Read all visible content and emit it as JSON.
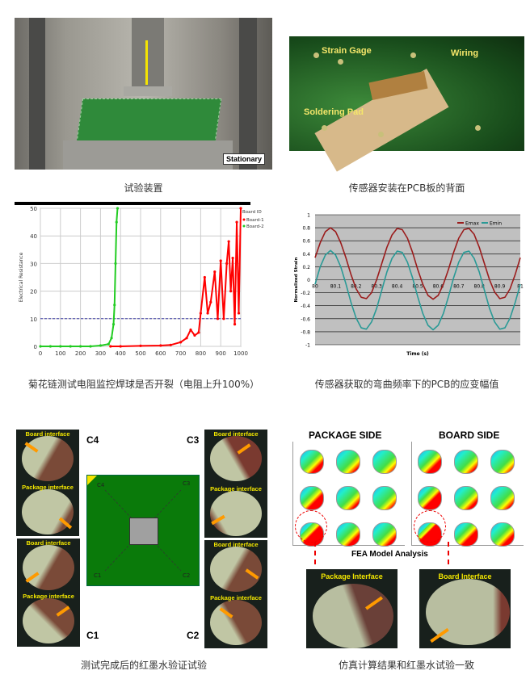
{
  "figures": [
    {
      "caption": "试验装置",
      "labels": {
        "stationary": "Stationary"
      }
    },
    {
      "caption": "传感器安装在PCB板的背面",
      "labels": {
        "strain_gage": "Strain Gage",
        "wiring": "Wiring",
        "soldering_pad": "Soldering Pad"
      }
    },
    {
      "caption": "菊花链测试电阻监控焊球是否开裂（电阻上升100%）"
    },
    {
      "caption": "传感器获取的弯曲频率下的PCB的应变幅值"
    },
    {
      "caption": "测试完成后的红墨水验证试验",
      "corners": [
        "C4",
        "C3",
        "C1",
        "C2"
      ],
      "board_corners": [
        "C4",
        "C3",
        "C1",
        "C2"
      ],
      "joint_labels": [
        "Board interface",
        "Package interface",
        "Board interface",
        "Package interface",
        "Board interface",
        "Package interface",
        "Board interface",
        "Package interface"
      ]
    },
    {
      "caption": "仿真计算结果和红墨水试验一致",
      "package_side": "PACKAGE SIDE",
      "board_side": "BOARD SIDE",
      "fea_label": "FEA Model Analysis",
      "package_interface": "Package Interface",
      "board_interface": "Board Interface"
    }
  ],
  "chart_data": [
    {
      "type": "scatter",
      "title": "",
      "xlabel": "",
      "ylabel": "Electrical Resistance",
      "xlim": [
        0,
        1000
      ],
      "ylim": [
        0,
        50
      ],
      "xticks": [
        0,
        100,
        200,
        300,
        400,
        500,
        600,
        700,
        800,
        900,
        1000
      ],
      "yticks": [
        0,
        10,
        20,
        30,
        40,
        50
      ],
      "grid": true,
      "threshold": 10,
      "legend": {
        "title": "Board ID",
        "placement": "right"
      },
      "series": [
        {
          "name": "Board-1",
          "color": "#ff0000",
          "points": [
            [
              350,
              0
            ],
            [
              400,
              0
            ],
            [
              500,
              0.2
            ],
            [
              600,
              0.3
            ],
            [
              650,
              0.5
            ],
            [
              700,
              1.5
            ],
            [
              730,
              3
            ],
            [
              750,
              6
            ],
            [
              770,
              4
            ],
            [
              790,
              5
            ],
            [
              800,
              12
            ],
            [
              820,
              25
            ],
            [
              835,
              12
            ],
            [
              850,
              16
            ],
            [
              870,
              27
            ],
            [
              885,
              10
            ],
            [
              900,
              31
            ],
            [
              915,
              10
            ],
            [
              930,
              30
            ],
            [
              940,
              38
            ],
            [
              950,
              20
            ],
            [
              960,
              32
            ],
            [
              970,
              8
            ],
            [
              980,
              45
            ],
            [
              990,
              12
            ],
            [
              1000,
              50
            ]
          ]
        },
        {
          "name": "Board-2",
          "color": "#22cc22",
          "points": [
            [
              0,
              0
            ],
            [
              50,
              0
            ],
            [
              100,
              0
            ],
            [
              150,
              0
            ],
            [
              200,
              0
            ],
            [
              250,
              0
            ],
            [
              300,
              0.3
            ],
            [
              340,
              0.8
            ],
            [
              355,
              3
            ],
            [
              365,
              8
            ],
            [
              370,
              15
            ],
            [
              375,
              30
            ],
            [
              380,
              45
            ],
            [
              385,
              50
            ]
          ]
        }
      ]
    },
    {
      "type": "line",
      "title": "",
      "xlabel": "Time (s)",
      "ylabel": "Normalized Strain",
      "xlim": [
        80,
        81
      ],
      "ylim": [
        -1,
        1
      ],
      "xticks": [
        "80",
        "80.1",
        "80.2",
        "80.3",
        "80.4",
        "80.5",
        "80.6",
        "80.7",
        "80.8",
        "80.9",
        "81"
      ],
      "yticks": [
        "1",
        "0.8",
        "0.6",
        "0.4",
        "0.2",
        "0",
        "-0.2",
        "-0.4",
        "-0.6",
        "-0.8",
        "-1"
      ],
      "grid": true,
      "legend": {
        "placement": "top-right"
      },
      "x_step": 0.025,
      "series": [
        {
          "name": "Emax",
          "color": "#9b1c1c",
          "values": [
            0.34,
            0.57,
            0.74,
            0.8,
            0.74,
            0.57,
            0.34,
            0.08,
            -0.14,
            -0.27,
            -0.29,
            -0.2,
            0.0,
            0.25,
            0.5,
            0.69,
            0.79,
            0.77,
            0.64,
            0.42,
            0.16,
            -0.07,
            -0.24,
            -0.3,
            -0.24,
            -0.07,
            0.16,
            0.42,
            0.64,
            0.77,
            0.79,
            0.7,
            0.5,
            0.25,
            0.0,
            -0.19,
            -0.29,
            -0.27,
            -0.14,
            0.08,
            0.34
          ]
        },
        {
          "name": "Emin",
          "color": "#2a9a96",
          "values": [
            -0.07,
            0.2,
            0.38,
            0.45,
            0.38,
            0.2,
            -0.06,
            -0.35,
            -0.59,
            -0.74,
            -0.76,
            -0.65,
            -0.44,
            -0.16,
            0.12,
            0.33,
            0.44,
            0.42,
            0.27,
            0.03,
            -0.26,
            -0.52,
            -0.7,
            -0.77,
            -0.7,
            -0.52,
            -0.26,
            0.03,
            0.27,
            0.42,
            0.44,
            0.33,
            0.12,
            -0.16,
            -0.44,
            -0.65,
            -0.76,
            -0.74,
            -0.59,
            -0.35,
            -0.07
          ]
        }
      ]
    }
  ]
}
